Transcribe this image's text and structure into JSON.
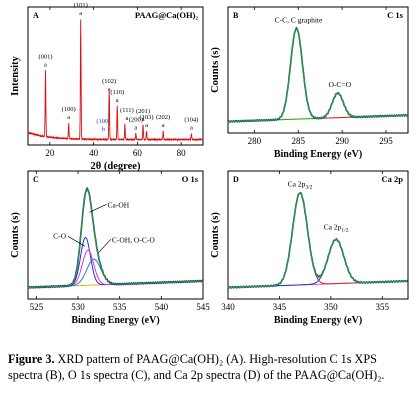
{
  "caption": {
    "label": "Figure 3.",
    "text": "XRD pattern of PAAG@Ca(OH)₂ (A). High-resolution C 1s XPS spectra (B), O 1s spectra (C), and Ca 2p spectra (D) of the PAAG@Ca(OH)₂."
  },
  "chart_data": [
    {
      "panel": "A",
      "type": "line",
      "inset_title": "PAAG@Ca(OH)₂",
      "xlabel": "2θ (degree)",
      "ylabel": "Intensity",
      "xlim": [
        10,
        90
      ],
      "xticks": [
        20,
        40,
        60,
        80
      ],
      "yticks_shown": false,
      "series_color": "#dd1111",
      "peaks": [
        {
          "x": 18.0,
          "height": 0.55,
          "label": "(001)",
          "marker": "a"
        },
        {
          "x": 28.6,
          "height": 0.13,
          "label": "(100)",
          "marker": "a"
        },
        {
          "x": 34.1,
          "height": 1.0,
          "label": "(101)",
          "marker": "a"
        },
        {
          "x": 47.1,
          "height": 0.37,
          "label": "(102)",
          "marker": "a"
        },
        {
          "x": 50.8,
          "height": 0.28,
          "label": "(110)",
          "marker": "a"
        },
        {
          "x": 54.3,
          "height": 0.13,
          "label": "(111)",
          "marker": "a"
        },
        {
          "x": 47.2,
          "height": 0.05,
          "label": "(100)",
          "marker": "b"
        },
        {
          "x": 59.3,
          "height": 0.05,
          "label": "(200)",
          "marker": "a"
        },
        {
          "x": 62.6,
          "height": 0.12,
          "label": "(201)",
          "marker": "a"
        },
        {
          "x": 64.2,
          "height": 0.07,
          "label": "(103)",
          "marker": "a"
        },
        {
          "x": 71.8,
          "height": 0.07,
          "label": "(202)",
          "marker": "a"
        },
        {
          "x": 84.7,
          "height": 0.05,
          "label": "(104)",
          "marker": "a"
        }
      ]
    },
    {
      "panel": "B",
      "type": "line",
      "inset_title": "C 1s",
      "xlabel": "Binding Energy (eV)",
      "ylabel": "Counts (s)",
      "xlim": [
        277,
        297.5
      ],
      "xticks": [
        280,
        285,
        290,
        295
      ],
      "peaks": [
        {
          "x": 284.8,
          "height": 1.0,
          "fwhm": 1.6,
          "label": "C-C, C graphite",
          "color": "#cc2222"
        },
        {
          "x": 289.5,
          "height": 0.27,
          "fwhm": 1.5,
          "label": "O-C=O",
          "color": "#22aa22"
        }
      ],
      "envelope_color": "#1a3d8f",
      "fit_color": "#22aa22",
      "background_color": "#d8b400"
    },
    {
      "panel": "C",
      "type": "line",
      "inset_title": "O 1s",
      "xlabel": "Binding Energy (eV)",
      "ylabel": "Counts (s)",
      "xlim": [
        524,
        545
      ],
      "xticks": [
        525,
        530,
        535,
        540,
        545
      ],
      "peaks": [
        {
          "x": 530.9,
          "height": 0.52,
          "fwhm": 1.4,
          "label": "Ca-OH",
          "color": "#2233cc"
        },
        {
          "x": 531.2,
          "height": 0.38,
          "fwhm": 1.6,
          "label": "C-O",
          "color": "#dd33dd"
        },
        {
          "x": 531.9,
          "height": 0.28,
          "fwhm": 2.0,
          "label": "C-OH, O-C-O",
          "color": "#2277ee"
        }
      ],
      "envelope_color": "#1a1a8f",
      "fit_color": "#22aa22",
      "background_color": "#d8b400"
    },
    {
      "panel": "D",
      "type": "line",
      "inset_title": "Ca 2p",
      "xlabel": "Binding Energy (eV)",
      "ylabel": "Counts (s)",
      "xlim": [
        340,
        357.5
      ],
      "xticks": [
        340,
        345,
        350,
        355
      ],
      "peaks": [
        {
          "x": 347.0,
          "height": 1.0,
          "fwhm": 1.7,
          "label": "Ca 2p3/2",
          "color": "#cc2222"
        },
        {
          "x": 350.5,
          "height": 0.48,
          "fwhm": 1.8,
          "label": "Ca 2p1/2",
          "color": "#2233cc"
        }
      ],
      "envelope_color": "#1a3d8f",
      "fit_color": "#22aa22",
      "background_color": "#dd33dd"
    }
  ]
}
